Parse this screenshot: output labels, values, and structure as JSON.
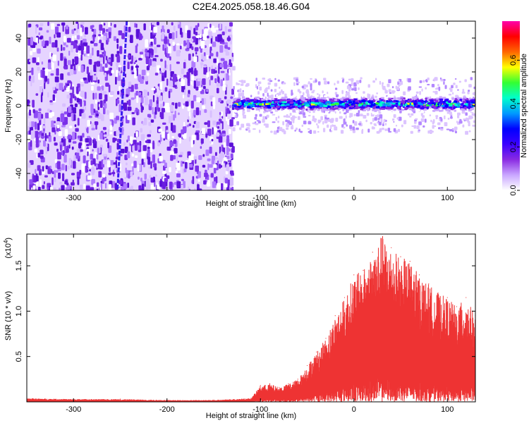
{
  "title": "C2E4.2025.058.18.46.G04",
  "colors": {
    "spectrogram_background": "#7f2bf2",
    "snr_line": "#ee3333",
    "colormap": [
      "#ffffff",
      "#c9a6ff",
      "#8a2be2",
      "#3b00ff",
      "#0000ff",
      "#0099ff",
      "#00ffcc",
      "#33ff33",
      "#ffff00",
      "#ff6600",
      "#ff0000",
      "#ff00aa"
    ]
  },
  "chart_data": [
    {
      "type": "heatmap",
      "xlabel": "Height of straight line (km)",
      "ylabel": "Frequency (Hz)",
      "xlim": [
        -350,
        130
      ],
      "ylim": [
        -50,
        50
      ],
      "xticks": [
        -300,
        -200,
        -100,
        0,
        100
      ],
      "yticks": [
        -40,
        -20,
        0,
        20,
        40
      ],
      "colorbar": {
        "label": "Normalized spectral amplitude",
        "range": [
          0.0,
          0.78
        ],
        "ticks": [
          0.0,
          0.2,
          0.4,
          0.6
        ]
      },
      "regions": [
        {
          "x_range": [
            -350,
            -130
          ],
          "description": "broadband noise",
          "amplitude": [
            0.0,
            0.12
          ]
        },
        {
          "x_range": [
            -130,
            130
          ],
          "description": "narrow band centered near 0 Hz",
          "band_center_hz": 1,
          "band_halfwidth_hz": 6,
          "amplitude": [
            0.0,
            0.78
          ]
        }
      ],
      "features": [
        {
          "kind": "tilted streak",
          "x_start": -243,
          "x_end": -253,
          "y_start": 50,
          "y_end": -50
        }
      ]
    },
    {
      "type": "line",
      "xlabel": "Height of straight line (km)",
      "ylabel": "SNR (10 * v/v)",
      "yscale_label": "(x10",
      "yscale_exp": "4",
      "xlim": [
        -350,
        130
      ],
      "ylim": [
        0,
        1.85
      ],
      "xticks": [
        -300,
        -200,
        -100,
        0,
        100
      ],
      "yticks": [
        0.5,
        1.0,
        1.5
      ],
      "ytick_labels": [
        "0.5",
        "1.0",
        "1.5"
      ],
      "series": [
        {
          "x": [
            -350,
            -300,
            -250,
            -200,
            -150,
            -110,
            -100,
            -90,
            -80,
            -70,
            -60,
            -50,
            -40,
            -30,
            -20,
            -10,
            0,
            10,
            20,
            30,
            40,
            50,
            60,
            70,
            80,
            90,
            100,
            110,
            120,
            130
          ],
          "y": [
            0.04,
            0.03,
            0.03,
            0.02,
            0.02,
            0.04,
            0.18,
            0.2,
            0.16,
            0.2,
            0.25,
            0.4,
            0.55,
            0.7,
            0.95,
            1.15,
            1.4,
            1.45,
            1.65,
            1.85,
            1.7,
            1.6,
            1.55,
            1.4,
            1.3,
            1.2,
            1.15,
            1.05,
            1.15,
            0.95
          ]
        }
      ]
    }
  ]
}
